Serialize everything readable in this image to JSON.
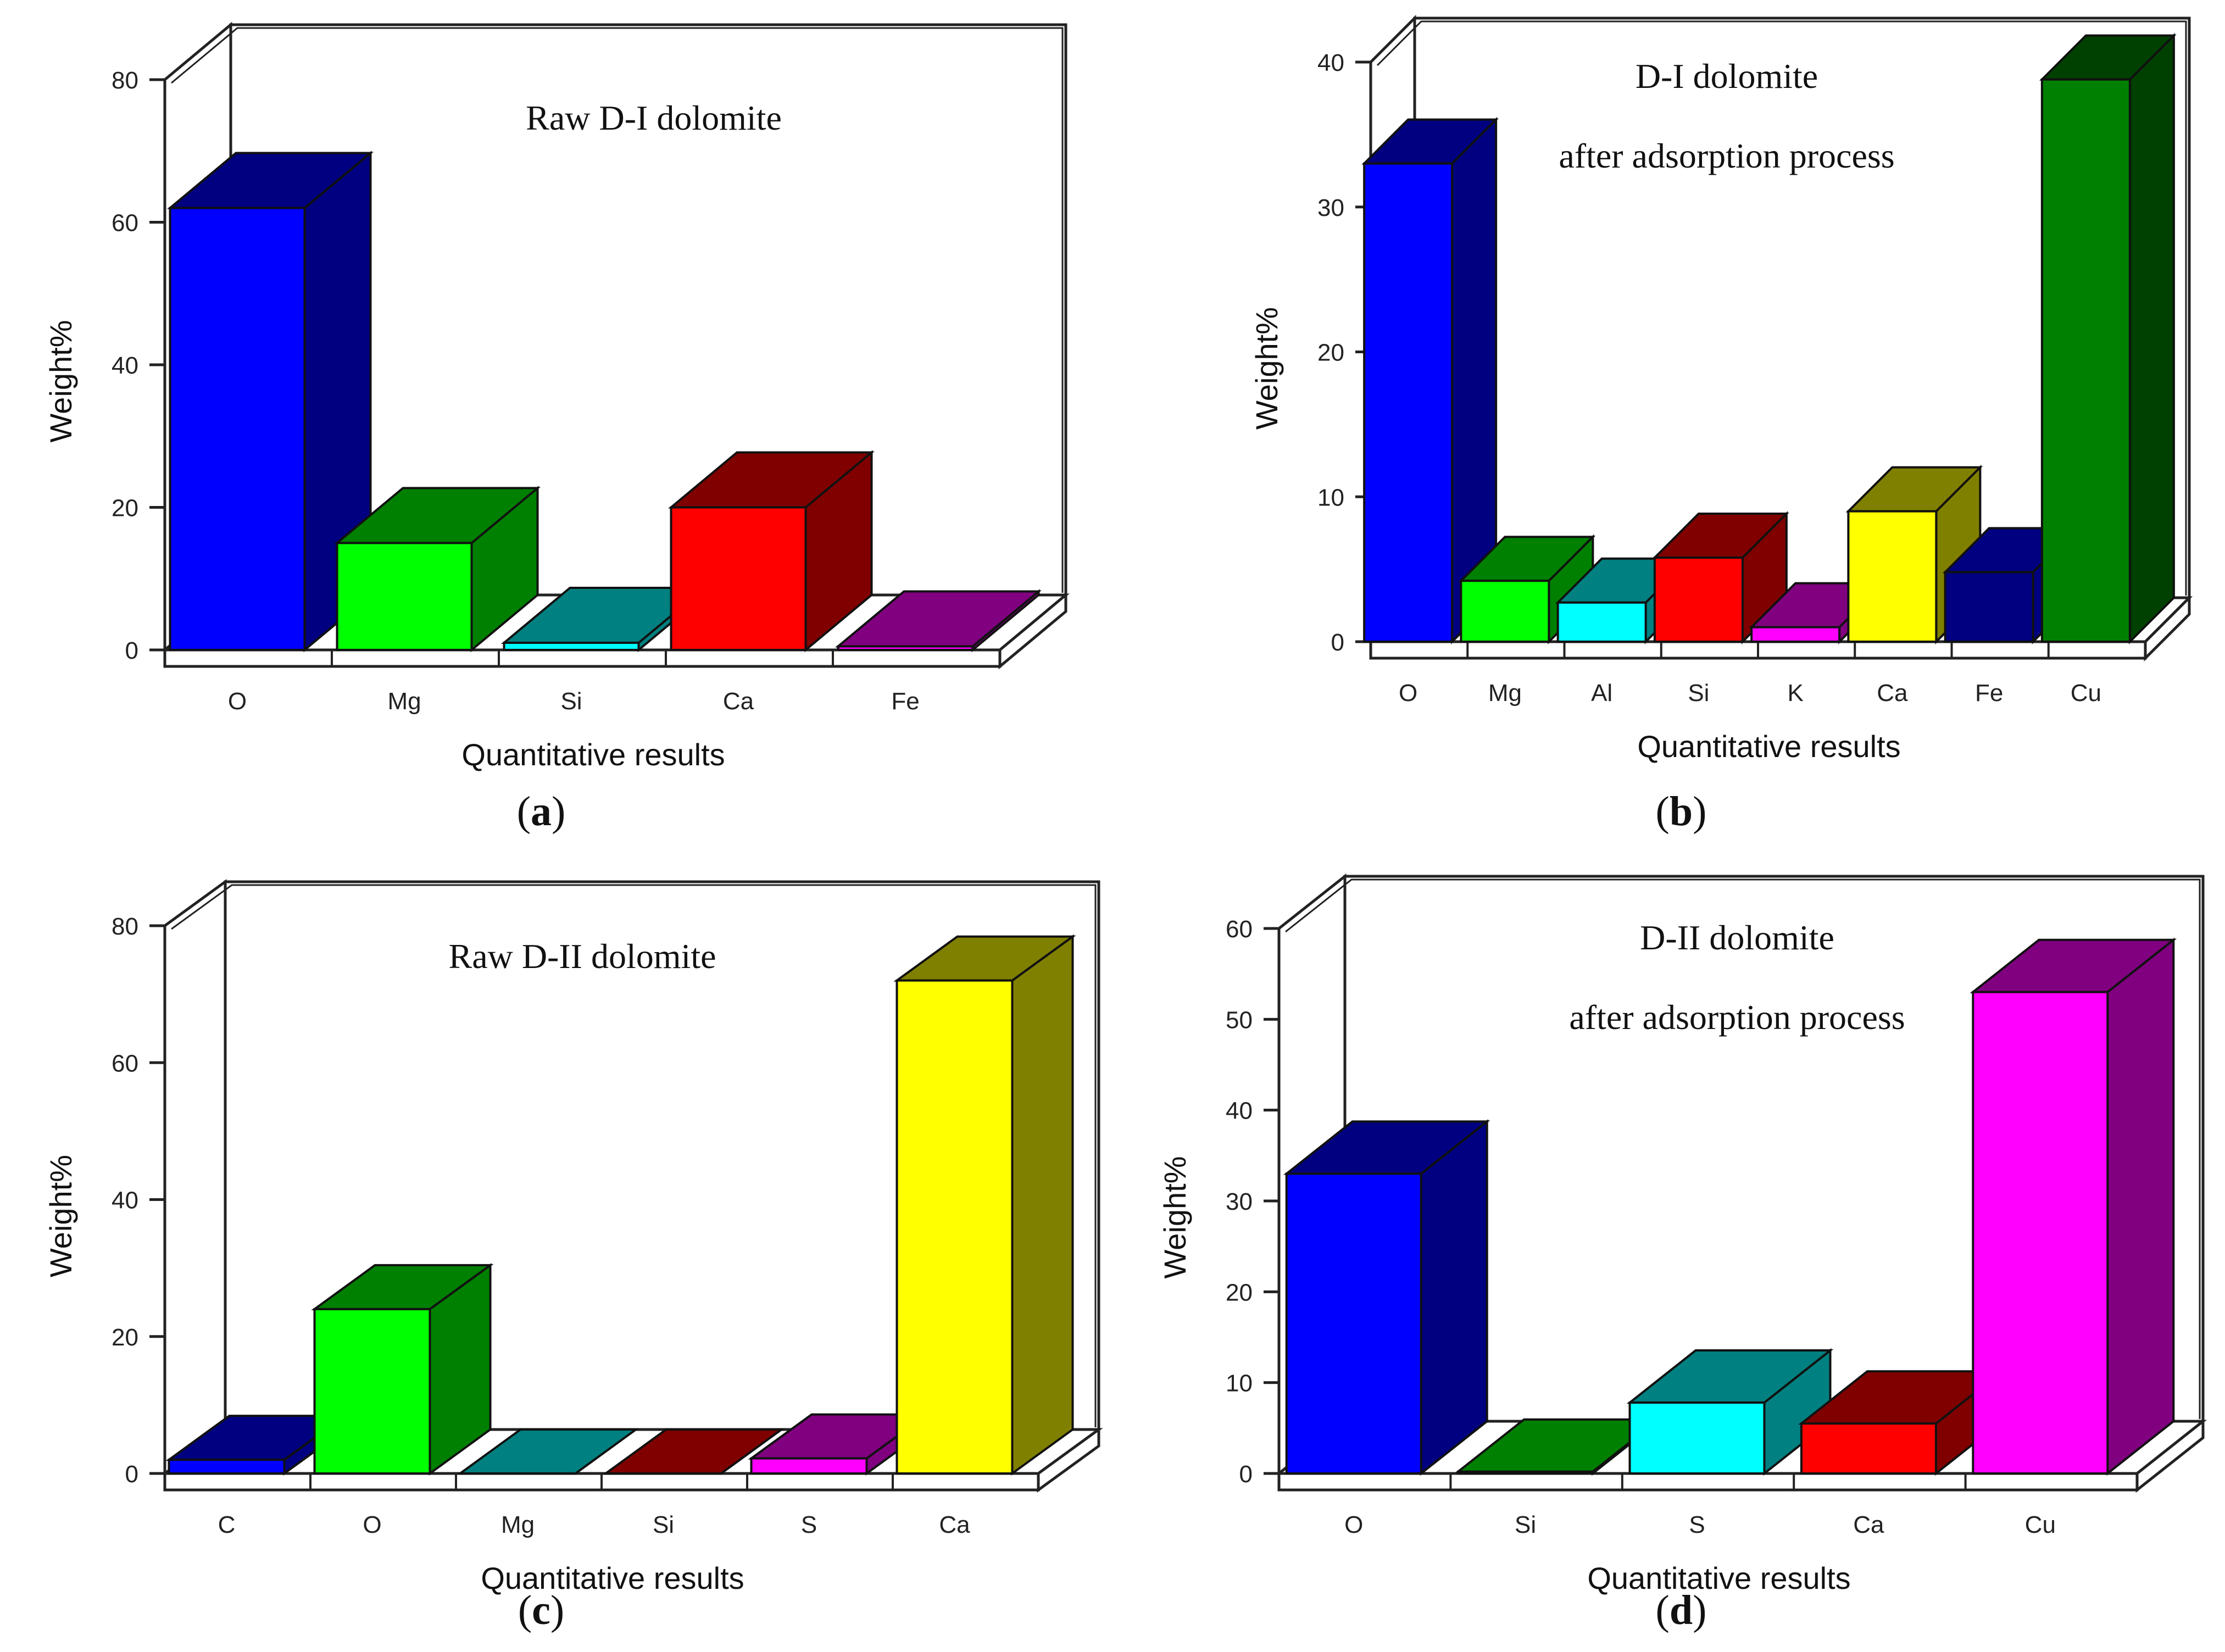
{
  "colors": {
    "blue": "#0000ff",
    "navy": "#000080",
    "green": "#00ff00",
    "darkgreen": "#008000",
    "deepgreen": "#004000",
    "cyan": "#00ffff",
    "teal": "#008080",
    "red": "#ff0000",
    "maroon": "#800000",
    "magenta": "#ff00ff",
    "purple": "#800080",
    "yellow": "#ffff00",
    "olive": "#808000"
  },
  "chart_data": [
    {
      "id": "a",
      "type": "bar",
      "title": "Raw D-I dolomite",
      "caption_letter": "a",
      "xlabel": "Quantitative results",
      "ylabel": "Weight%",
      "ylim": [
        0,
        80
      ],
      "yticks": [
        0,
        20,
        40,
        60,
        80
      ],
      "categories": [
        "O",
        "Mg",
        "Si",
        "Ca",
        "Fe"
      ],
      "values": [
        62,
        15,
        1,
        20,
        0.5
      ],
      "bar_colors": [
        [
          "blue",
          "navy"
        ],
        [
          "green",
          "darkgreen"
        ],
        [
          "cyan",
          "teal"
        ],
        [
          "red",
          "maroon"
        ],
        [
          "magenta",
          "purple"
        ]
      ]
    },
    {
      "id": "b",
      "type": "bar",
      "title": [
        "D-I dolomite",
        "after adsorption process"
      ],
      "caption_letter": "b",
      "xlabel": "Quantitative results",
      "ylabel": "Weight%",
      "ylim": [
        0,
        40
      ],
      "yticks": [
        0,
        10,
        20,
        30,
        40
      ],
      "categories": [
        "O",
        "Mg",
        "Al",
        "Si",
        "K",
        "Ca",
        "Fe",
        "Cu"
      ],
      "values": [
        33,
        4.2,
        2.7,
        5.8,
        1,
        9,
        4.8,
        38.8
      ],
      "bar_colors": [
        [
          "blue",
          "navy"
        ],
        [
          "green",
          "darkgreen"
        ],
        [
          "cyan",
          "teal"
        ],
        [
          "red",
          "maroon"
        ],
        [
          "magenta",
          "purple"
        ],
        [
          "yellow",
          "olive"
        ],
        [
          "navy",
          "navy"
        ],
        [
          "darkgreen",
          "deepgreen"
        ]
      ]
    },
    {
      "id": "c",
      "type": "bar",
      "title": "Raw D-II dolomite",
      "caption_letter": "c",
      "xlabel": "Quantitative results",
      "ylabel": "Weight%",
      "ylim": [
        0,
        80
      ],
      "yticks": [
        0,
        20,
        40,
        60,
        80
      ],
      "categories": [
        "C",
        "O",
        "Mg",
        "Si",
        "S",
        "Ca"
      ],
      "values": [
        2,
        24,
        0,
        0,
        2.2,
        72
      ],
      "bar_colors": [
        [
          "blue",
          "navy"
        ],
        [
          "green",
          "darkgreen"
        ],
        [
          "cyan",
          "teal"
        ],
        [
          "red",
          "maroon"
        ],
        [
          "magenta",
          "purple"
        ],
        [
          "yellow",
          "olive"
        ]
      ]
    },
    {
      "id": "d",
      "type": "bar",
      "title": [
        "D-II dolomite",
        "after adsorption process"
      ],
      "caption_letter": "d",
      "xlabel": "Quantitative results",
      "ylabel": "Weight%",
      "ylim": [
        0,
        60
      ],
      "yticks": [
        0,
        10,
        20,
        30,
        40,
        50,
        60
      ],
      "categories": [
        "O",
        "Si",
        "S",
        "Ca",
        "Cu"
      ],
      "values": [
        33,
        0.2,
        7.8,
        5.5,
        53
      ],
      "bar_colors": [
        [
          "blue",
          "navy"
        ],
        [
          "green",
          "darkgreen"
        ],
        [
          "cyan",
          "teal"
        ],
        [
          "red",
          "maroon"
        ],
        [
          "magenta",
          "purple"
        ]
      ]
    }
  ]
}
